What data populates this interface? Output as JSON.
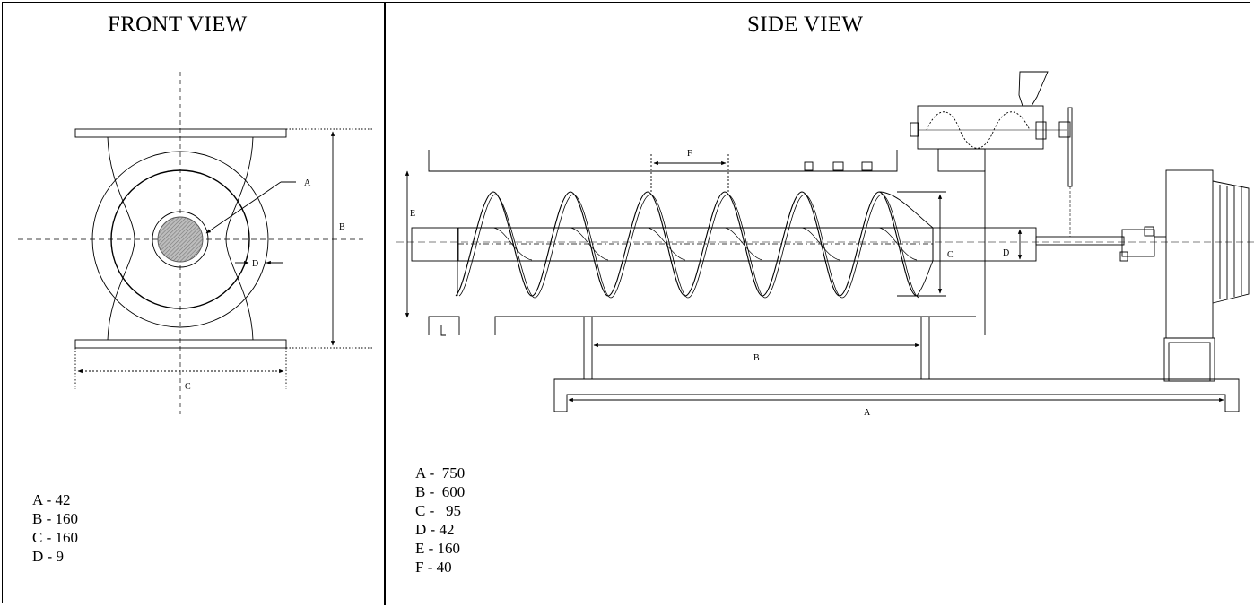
{
  "front_view": {
    "title": "FRONT VIEW",
    "labels": {
      "a": "A",
      "b": "B",
      "c": "C",
      "d": "D"
    },
    "legend": [
      "A - 42",
      "B - 160",
      "C - 160",
      "D - 9"
    ]
  },
  "side_view": {
    "title": "SIDE VIEW",
    "labels": {
      "a": "A",
      "b": "B",
      "c": "C",
      "d": "D",
      "e": "E",
      "f": "F"
    },
    "legend": [
      "A -  750",
      "B -  600",
      "C -   95",
      "D - 42",
      "E - 160",
      "F - 40"
    ]
  }
}
